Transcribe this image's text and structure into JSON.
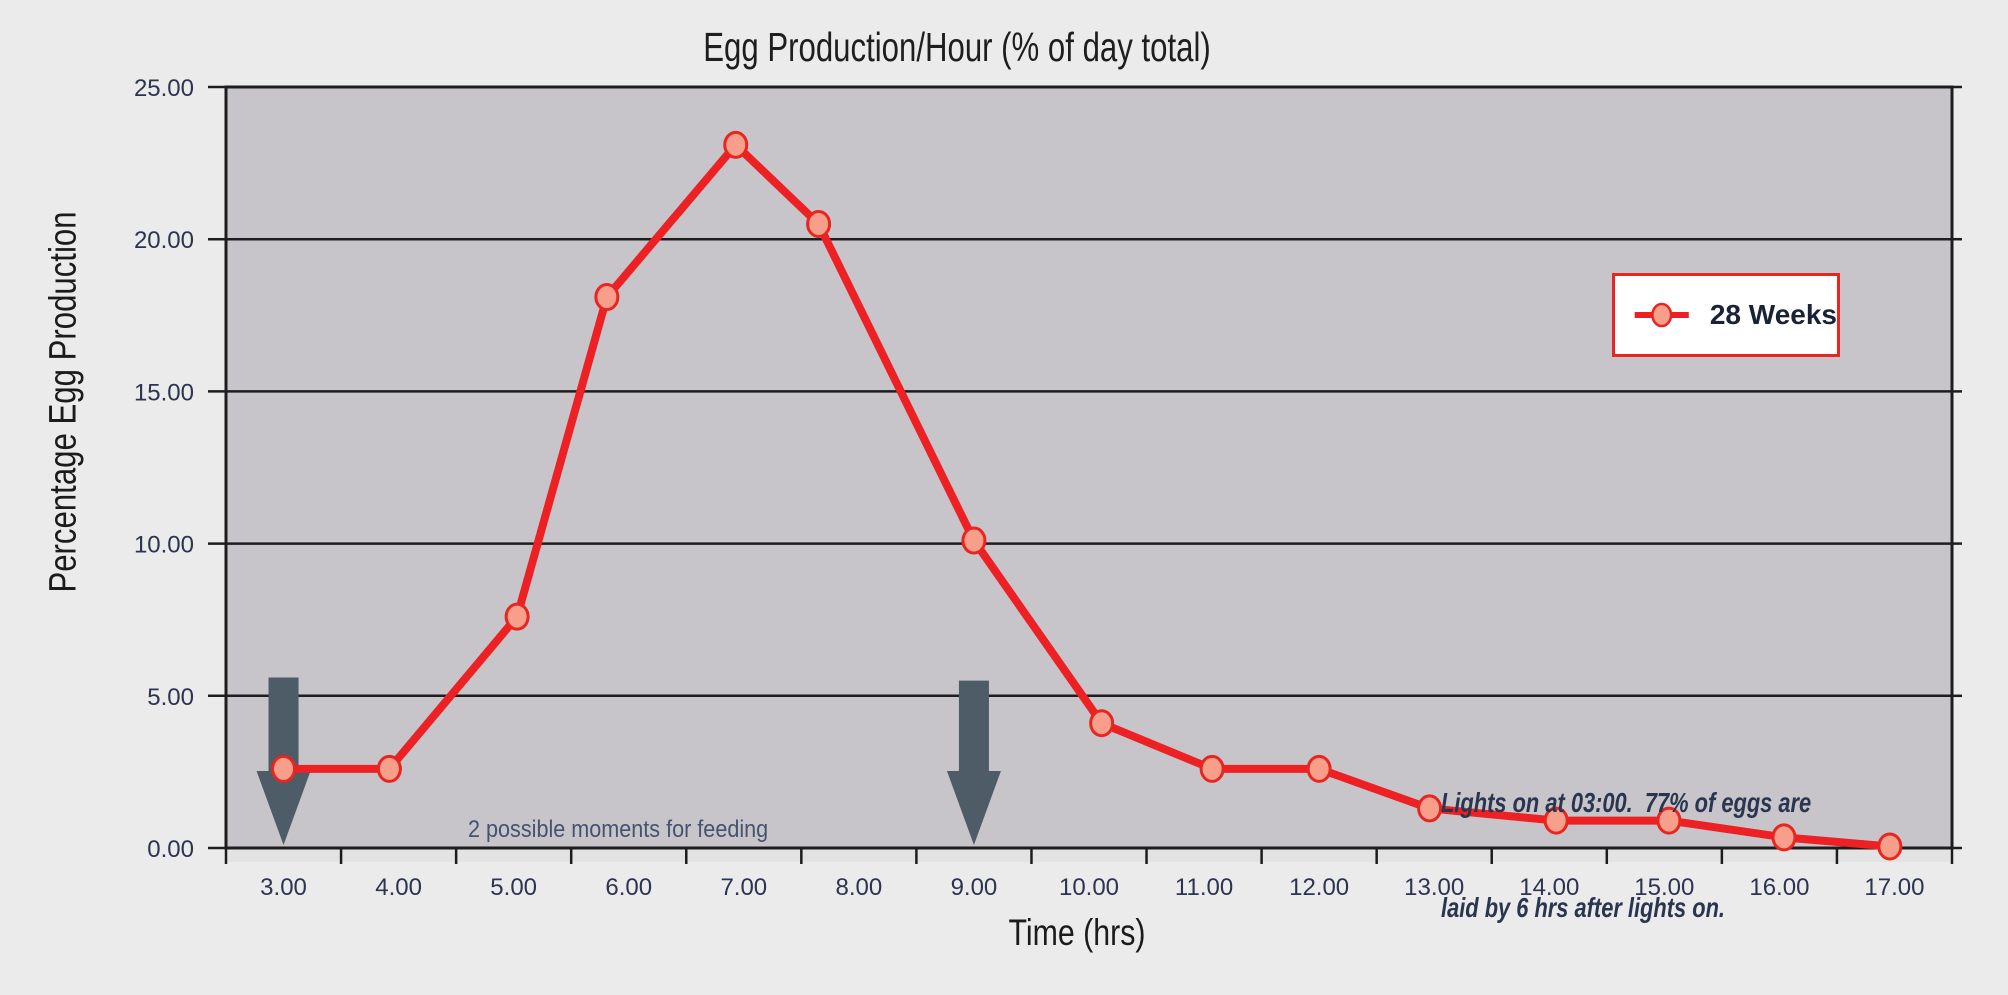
{
  "chart_data": {
    "type": "line",
    "title": "Egg Production/Hour (% of day total)",
    "xlabel": "Time (hrs)",
    "ylabel": "Percentage Egg Production",
    "series": [
      {
        "name": "28 Weeks",
        "x": [
          3.0,
          3.92,
          5.03,
          5.81,
          6.93,
          7.65,
          9.0,
          10.11,
          11.07,
          12.0,
          12.96,
          14.06,
          15.04,
          16.04,
          16.96
        ],
        "y": [
          2.6,
          2.6,
          7.6,
          18.1,
          23.1,
          20.5,
          10.1,
          4.1,
          2.6,
          2.6,
          1.3,
          0.9,
          0.9,
          0.35,
          0.05
        ]
      }
    ],
    "nominal_hours": [
      3,
      4,
      5,
      6,
      7,
      8,
      9,
      10,
      11,
      12,
      13,
      14,
      15,
      16,
      17
    ],
    "xlim": [
      2.5,
      17.5
    ],
    "ylim": [
      0,
      25
    ],
    "x_tick_values": [
      3,
      4,
      5,
      6,
      7,
      8,
      9,
      10,
      11,
      12,
      13,
      14,
      15,
      16,
      17
    ],
    "x_tick_labels": [
      "3.00",
      "4.00",
      "5.00",
      "6.00",
      "7.00",
      "8.00",
      "9.00",
      "10.00",
      "11.00",
      "12.00",
      "13.00",
      "14.00",
      "15.00",
      "16.00",
      "17.00"
    ],
    "y_tick_values": [
      0,
      5,
      10,
      15,
      20,
      25
    ],
    "y_tick_labels": [
      "0.00",
      "5.00",
      "10.00",
      "15.00",
      "20.00",
      "25.00"
    ],
    "grid": "horizontal",
    "legend_position": "inside-right",
    "arrows": [
      {
        "x": 3.0,
        "y_top": 5.6,
        "y_tip": 0.1
      },
      {
        "x": 9.0,
        "y_top": 5.5,
        "y_tip": 0.1
      }
    ],
    "annotations": {
      "feeding": "2 possible moments for feeding",
      "lights_line1": "Lights on at 03:00.  77% of eggs are",
      "lights_line2": "laid by 6 hrs after lights on."
    },
    "colors": {
      "line": "#ed2024",
      "marker_fill": "#f89f8b",
      "marker_stroke": "#e8251f",
      "arrow": "#4e5c68",
      "plot_background": "#c7c5c9",
      "page_background": "#ecebec",
      "grid": "#1d1d1d",
      "border": "#1d1d1d",
      "tick_label": "#2b3450",
      "legend_border": "#e8251f",
      "legend_text": "#1a2238"
    }
  }
}
